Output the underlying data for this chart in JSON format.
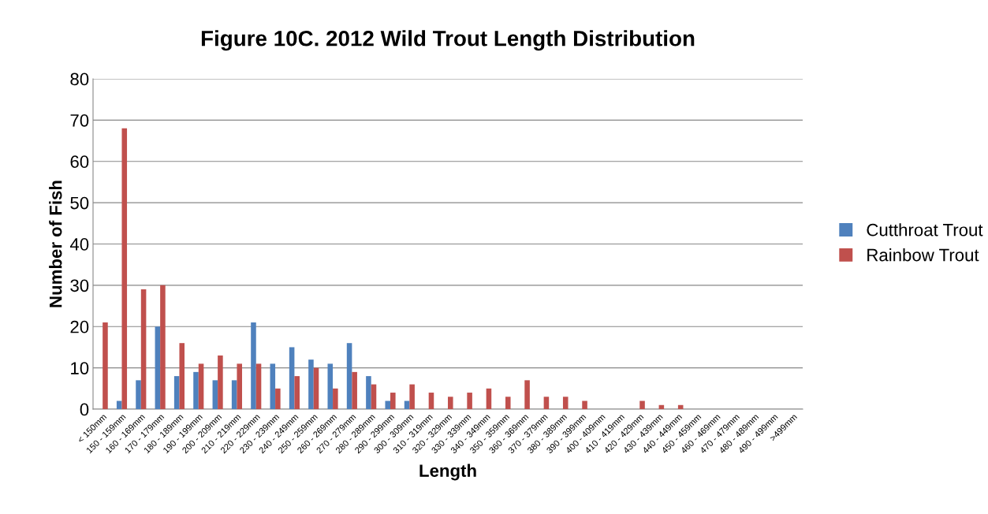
{
  "chart_data": {
    "type": "bar",
    "title": "Figure 10C. 2012 Wild Trout Length Distribution",
    "xlabel": "Length",
    "ylabel": "Number of Fish",
    "categories": [
      "< 150mm",
      "150 - 159mm",
      "160 - 169mm",
      "170 - 179mm",
      "180 - 189mm",
      "190 - 199mm",
      "200 - 209mm",
      "210 - 219mm",
      "220 - 229mm",
      "230 - 239mm",
      "240 - 249mm",
      "250 - 259mm",
      "260 - 269mm",
      "270 - 279mm",
      "280 - 289mm",
      "290 - 299mm",
      "300 - 309mm",
      "310 - 319mm",
      "320 - 329mm",
      "330 - 339mm",
      "340 - 349mm",
      "350 - 359mm",
      "360 - 369mm",
      "370 - 379mm",
      "380 - 389mm",
      "390 - 399mm",
      "400 - 409mm",
      "410 - 419mm",
      "420 - 429mm",
      "430 - 439mm",
      "440 - 449mm",
      "450 - 459mm",
      "460 - 469mm",
      "470 - 479mm",
      "480 - 489mm",
      "490 - 499mm",
      ">499mm"
    ],
    "series": [
      {
        "name": "Cutthroat Trout",
        "color": "#4f81bd",
        "values": [
          0,
          2,
          7,
          20,
          8,
          9,
          7,
          7,
          21,
          11,
          15,
          12,
          11,
          16,
          8,
          2,
          2,
          0,
          0,
          0,
          0,
          0,
          0,
          0,
          0,
          0,
          0,
          0,
          0,
          0,
          0,
          0,
          0,
          0,
          0,
          0,
          0
        ]
      },
      {
        "name": "Rainbow Trout",
        "color": "#c0504d",
        "values": [
          21,
          68,
          29,
          30,
          16,
          11,
          13,
          11,
          11,
          5,
          8,
          10,
          5,
          9,
          6,
          4,
          6,
          4,
          3,
          4,
          5,
          3,
          7,
          3,
          3,
          2,
          0,
          0,
          2,
          1,
          1,
          0,
          0,
          0,
          0,
          0,
          0
        ]
      }
    ],
    "ylim": [
      0,
      80
    ],
    "yticks": [
      0,
      10,
      20,
      30,
      40,
      50,
      60,
      70,
      80
    ],
    "grid": "y",
    "legend": "right"
  }
}
